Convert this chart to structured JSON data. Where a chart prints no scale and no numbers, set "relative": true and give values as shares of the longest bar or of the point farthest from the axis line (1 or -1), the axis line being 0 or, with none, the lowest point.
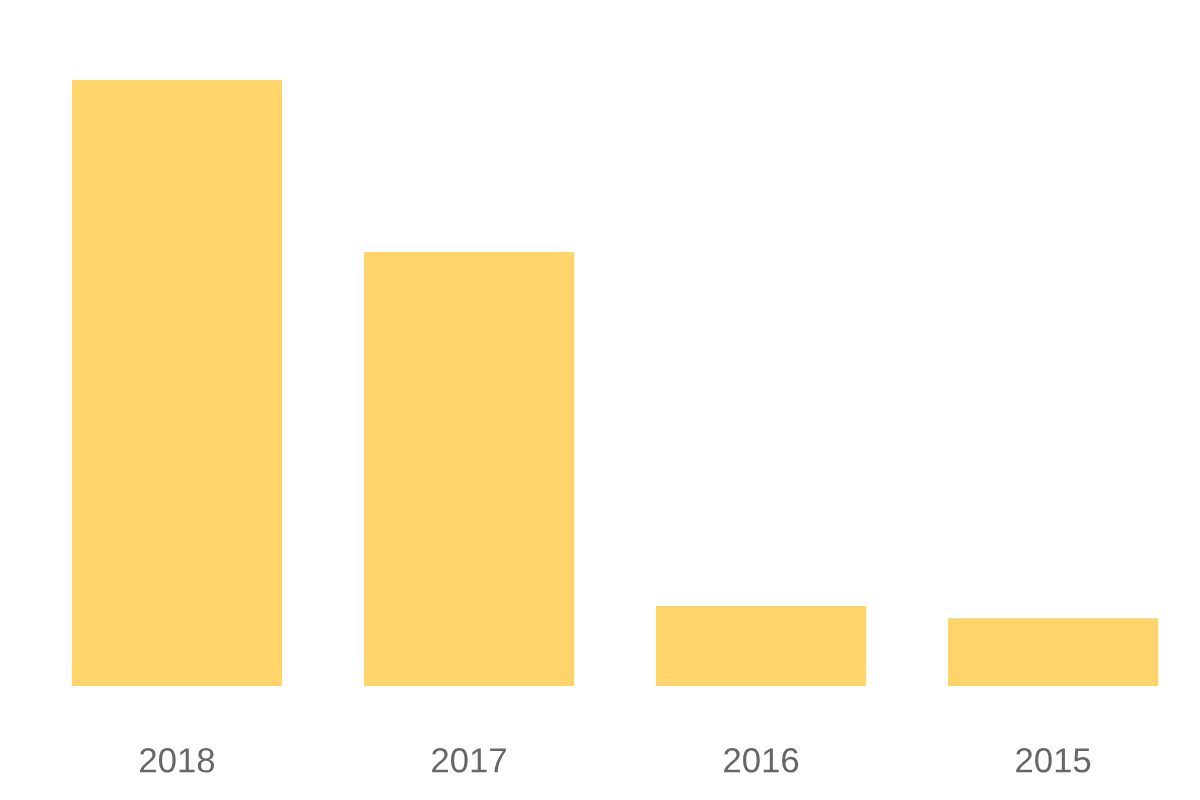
{
  "chart_data": {
    "type": "bar",
    "relative": true,
    "categories": [
      "2018",
      "2017",
      "2016",
      "2015"
    ],
    "series": [
      {
        "color": "#ffd56b",
        "values": [
          1,
          0.716,
          0.132,
          0.112
        ]
      }
    ],
    "grid": false,
    "legend": false
  }
}
